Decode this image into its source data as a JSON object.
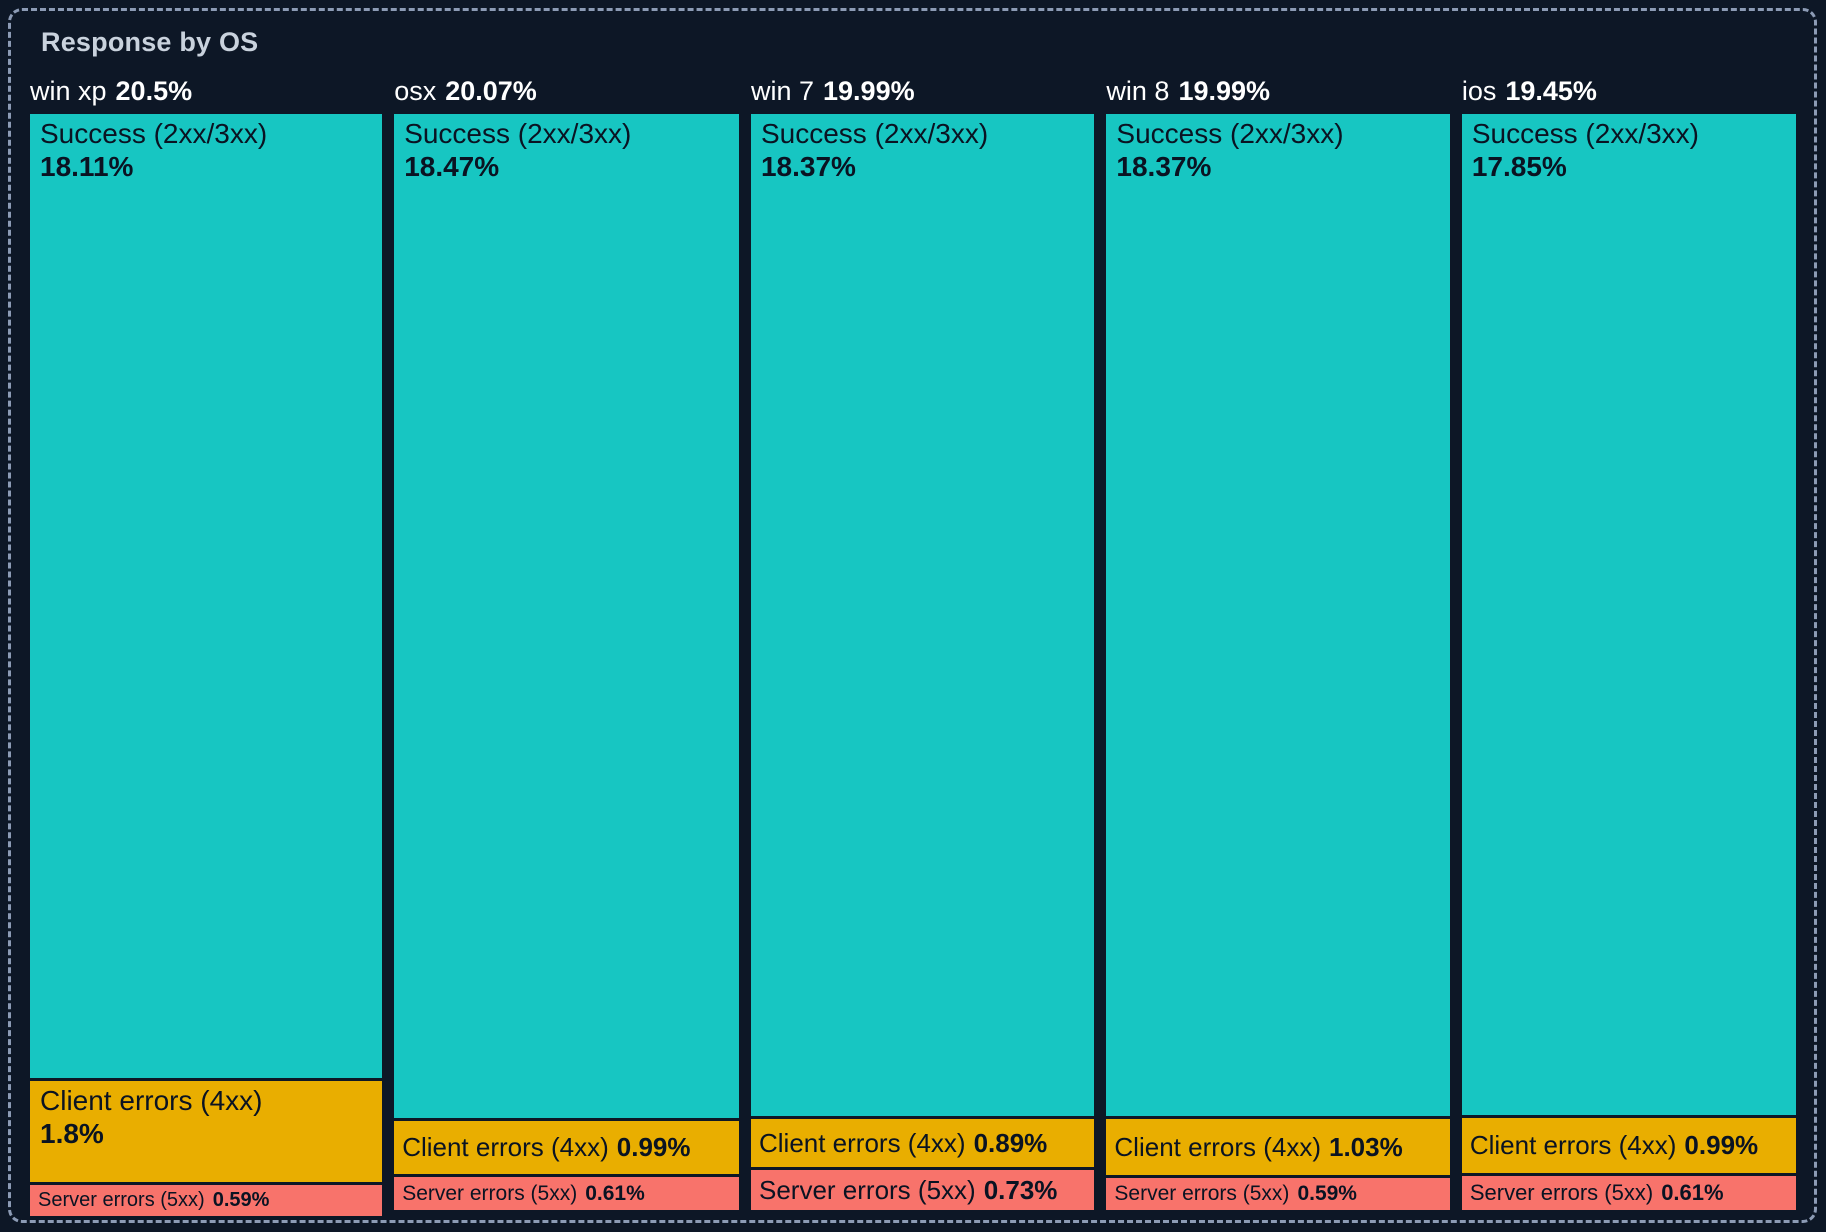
{
  "panel": {
    "title": "Response by OS"
  },
  "colors": {
    "background": "#0D1726",
    "panel_border": "#8C9BB5",
    "title_text": "#C9D2DD",
    "header_text": "#FFFFFF",
    "cell_text": "#0A1322",
    "success": "#17C6C2",
    "client_errors": "#E9AE00",
    "server_errors": "#F8736B"
  },
  "chart_data": {
    "type": "treemap",
    "title": "Response by OS",
    "group_by": "OS",
    "unit": "%",
    "legend_position": "none",
    "series_labels": [
      "Success (2xx/3xx)",
      "Client errors (4xx)",
      "Server errors (5xx)"
    ],
    "groups": [
      {
        "name": "win xp",
        "total": 20.5,
        "total_pct": "20.5%",
        "segments": [
          {
            "key": "success",
            "label": "Success (2xx/3xx)",
            "value": 18.11,
            "pct": "18.11%"
          },
          {
            "key": "client_errors",
            "label": "Client errors (4xx)",
            "value": 1.8,
            "pct": "1.8%"
          },
          {
            "key": "server_errors",
            "label": "Server errors (5xx)",
            "value": 0.59,
            "pct": "0.59%"
          }
        ]
      },
      {
        "name": "osx",
        "total": 20.07,
        "total_pct": "20.07%",
        "segments": [
          {
            "key": "success",
            "label": "Success (2xx/3xx)",
            "value": 18.47,
            "pct": "18.47%"
          },
          {
            "key": "client_errors",
            "label": "Client errors (4xx)",
            "value": 0.99,
            "pct": "0.99%"
          },
          {
            "key": "server_errors",
            "label": "Server errors (5xx)",
            "value": 0.61,
            "pct": "0.61%"
          }
        ]
      },
      {
        "name": "win 7",
        "total": 19.99,
        "total_pct": "19.99%",
        "segments": [
          {
            "key": "success",
            "label": "Success (2xx/3xx)",
            "value": 18.37,
            "pct": "18.37%"
          },
          {
            "key": "client_errors",
            "label": "Client errors (4xx)",
            "value": 0.89,
            "pct": "0.89%"
          },
          {
            "key": "server_errors",
            "label": "Server errors (5xx)",
            "value": 0.73,
            "pct": "0.73%"
          }
        ]
      },
      {
        "name": "win 8",
        "total": 19.99,
        "total_pct": "19.99%",
        "segments": [
          {
            "key": "success",
            "label": "Success (2xx/3xx)",
            "value": 18.37,
            "pct": "18.37%"
          },
          {
            "key": "client_errors",
            "label": "Client errors (4xx)",
            "value": 1.03,
            "pct": "1.03%"
          },
          {
            "key": "server_errors",
            "label": "Server errors (5xx)",
            "value": 0.59,
            "pct": "0.59%"
          }
        ]
      },
      {
        "name": "ios",
        "total": 19.45,
        "total_pct": "19.45%",
        "segments": [
          {
            "key": "success",
            "label": "Success (2xx/3xx)",
            "value": 17.85,
            "pct": "17.85%"
          },
          {
            "key": "client_errors",
            "label": "Client errors (4xx)",
            "value": 0.99,
            "pct": "0.99%"
          },
          {
            "key": "server_errors",
            "label": "Server errors (5xx)",
            "value": 0.61,
            "pct": "0.61%"
          }
        ]
      }
    ]
  }
}
